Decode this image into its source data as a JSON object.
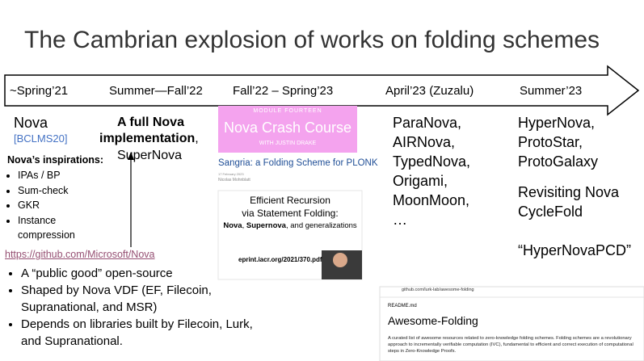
{
  "title": "The Cambrian explosion of works on folding schemes",
  "timeline": [
    "~Spring’21",
    "Summer—Fall’22",
    "Fall’22 – Spring’23",
    "April’23 (Zuzalu)",
    "Summer’23"
  ],
  "nova": {
    "name": "Nova",
    "citation": "[BCLMS20]",
    "inspirations_heading": "Nova’s inspirations:",
    "inspirations": [
      "IPAs / BP",
      "Sum-check",
      "GKR",
      "Instance compression"
    ]
  },
  "implementation": {
    "line1": "A full Nova",
    "line2_bold": "implementation",
    "line2_rest": ",",
    "line3": "SuperNova"
  },
  "github": {
    "link": "https://github.com/Microsoft/Nova",
    "bullets": [
      "A “public good” open-source",
      "Shaped by Nova VDF (EF, Filecoin, Supranational, and MSR)",
      "Depends on libraries built by Filecoin, Lurk, and Supranational."
    ]
  },
  "course": {
    "module": "MODULE FOURTEEN",
    "title": "Nova Crash Course",
    "host": "WITH JUSTIN DRAKE"
  },
  "sangria": {
    "title": "Sangria: a Folding Scheme for PLONK",
    "date": "17 February 2023",
    "author": "Nicolas Mohnblatt"
  },
  "paper": {
    "line1": "Efficient Recursion",
    "line2": "via Statement Folding:",
    "bold1": "Nova",
    "sep1": ", ",
    "bold2": "Supernova",
    "rest": ", and generalizations",
    "url": "eprint.iacr.org/2021/370.pdf"
  },
  "zuzalu": [
    "ParaNova,",
    "AIRNova,",
    "TypedNova,",
    "Origami,",
    "MoonMoon,",
    "…"
  ],
  "summer23": [
    "HyperNova,",
    "ProtoStar,",
    "ProtoGalaxy",
    "Revisiting Nova",
    "CycleFold",
    "“HyperNovaPCD”"
  ],
  "repo": {
    "url": "github.com/lurk-lab/awesome-folding",
    "file": "README.md",
    "heading": "Awesome-Folding",
    "description": "A curated list of awesome resources related to zero-knowledge folding schemes. Folding schemes are a revolutionary approach to incrementally verifiable computation (IVC), fundamental to efficient and correct execution of computational steps in Zero-Knowledge Proofs."
  }
}
